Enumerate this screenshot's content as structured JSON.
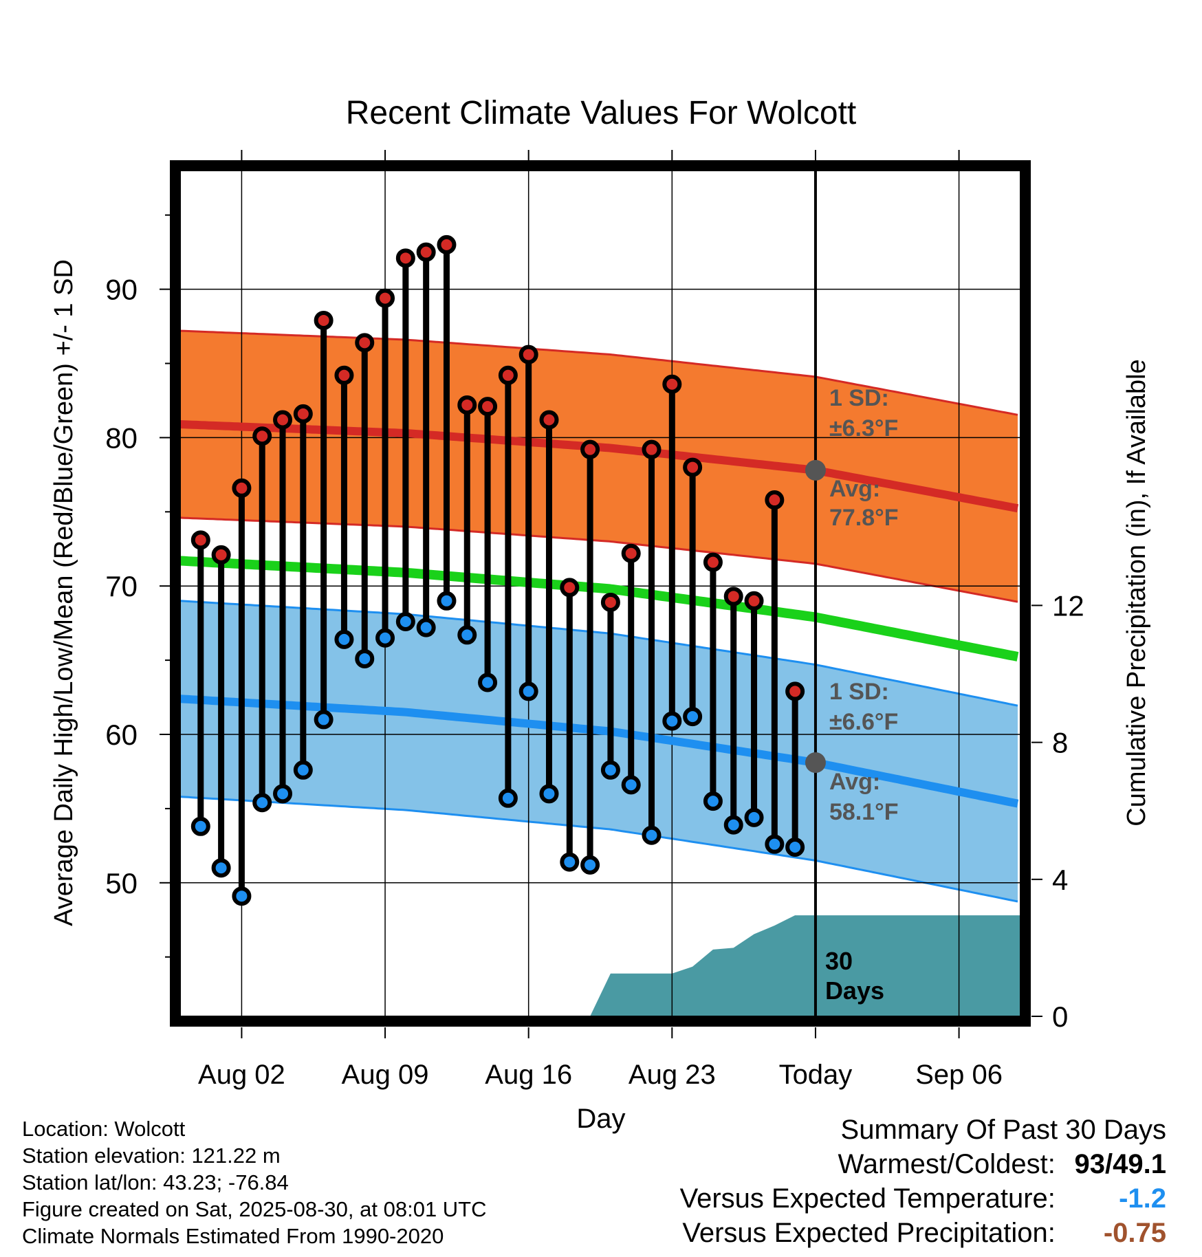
{
  "chart_data": {
    "type": "line",
    "title": "Recent Climate Values For Wolcott",
    "xlabel": "Day",
    "ylabel": "Average Daily High/Low/Mean (Red/Blue/Green) +/- 1 SD",
    "y2label": "Cumulative Precipitation (in), If Available",
    "xticks": [
      "Aug 02",
      "Aug 09",
      "Aug 16",
      "Aug 23",
      "Today",
      "Sep 06"
    ],
    "yticks": [
      "50",
      "60",
      "70",
      "80",
      "90"
    ],
    "y2ticks": [
      "0",
      "4",
      "8",
      "12"
    ],
    "ylim": [
      41,
      98
    ],
    "y2lim": [
      0,
      24.7
    ],
    "xlim": [
      "2025-07-30",
      "2025-09-09"
    ],
    "days": [
      "Jul 31",
      "Aug 01",
      "Aug 02",
      "Aug 03",
      "Aug 04",
      "Aug 05",
      "Aug 06",
      "Aug 07",
      "Aug 08",
      "Aug 09",
      "Aug 10",
      "Aug 11",
      "Aug 12",
      "Aug 13",
      "Aug 14",
      "Aug 15",
      "Aug 16",
      "Aug 17",
      "Aug 18",
      "Aug 19",
      "Aug 20",
      "Aug 21",
      "Aug 22",
      "Aug 23",
      "Aug 24",
      "Aug 25",
      "Aug 26",
      "Aug 27",
      "Aug 28",
      "Aug 29"
    ],
    "highs": [
      73.1,
      72.1,
      76.6,
      80.1,
      81.2,
      81.6,
      87.9,
      84.2,
      86.4,
      89.4,
      92.1,
      92.5,
      93.0,
      82.2,
      82.1,
      84.2,
      85.6,
      81.2,
      69.9,
      79.2,
      68.9,
      72.2,
      79.2,
      83.6,
      78.0,
      71.6,
      69.3,
      69.0,
      75.8,
      62.9
    ],
    "lows": [
      53.8,
      51.0,
      49.1,
      55.4,
      56.0,
      57.6,
      61.0,
      66.4,
      65.1,
      66.5,
      67.6,
      67.2,
      69.0,
      66.7,
      63.5,
      55.7,
      62.9,
      56.0,
      51.4,
      51.2,
      57.6,
      56.6,
      53.2,
      60.9,
      61.2,
      55.5,
      53.9,
      54.4,
      52.6,
      52.4
    ],
    "normal_x": [
      "2025-07-30",
      "2025-08-10",
      "2025-08-20",
      "2025-08-30",
      "2025-09-09"
    ],
    "normal_high": [
      80.9,
      80.3,
      79.3,
      77.8,
      75.2
    ],
    "normal_low": [
      62.4,
      61.5,
      60.2,
      58.1,
      55.3
    ],
    "normal_mean": [
      71.7,
      70.9,
      69.8,
      67.9,
      65.2
    ],
    "high_sd": 6.3,
    "low_sd": 6.6,
    "precip_x": [
      "2025-08-19",
      "2025-08-20",
      "2025-08-21",
      "2025-08-22",
      "2025-08-23",
      "2025-08-24",
      "2025-08-25",
      "2025-08-26",
      "2025-08-27",
      "2025-08-28",
      "2025-08-29",
      "2025-09-09"
    ],
    "precip_cum": [
      0.0,
      1.25,
      1.25,
      1.25,
      1.25,
      1.45,
      1.95,
      2.0,
      2.4,
      2.65,
      2.95,
      2.95
    ],
    "today": "2025-08-30",
    "annotations": {
      "high_sd_label": "1 SD:",
      "high_sd_value": "±6.3°F",
      "high_avg_label": "Avg:",
      "high_avg_value": "77.8°F",
      "low_sd_label": "1 SD:",
      "low_sd_value": "±6.6°F",
      "low_avg_label": "Avg:",
      "low_avg_value": "58.1°F",
      "precip_days_1": "30",
      "precip_days_2": "Days"
    },
    "colors": {
      "high_band": "#f47a2f",
      "high_line": "#d42a25",
      "high_marker": "#d42a25",
      "low_band": "#84c2e8",
      "low_line": "#1e8ff0",
      "low_marker": "#1e8ff0",
      "mean_line": "#1ad11a",
      "precip_fill": "#4a9aa3",
      "annotation_text": "#555555",
      "avg_marker": "#555555"
    }
  },
  "info": {
    "location": "Location: Wolcott",
    "elevation": "Station elevation: 121.22 m",
    "latlon": "Station lat/lon: 43.23; -76.84",
    "created": "Figure created on Sat, 2025-08-30, at 08:01 UTC",
    "normals": "Climate Normals Estimated From 1990-2020"
  },
  "summary": {
    "title": "Summary Of Past 30 Days",
    "warmest_label": "Warmest/Coldest:",
    "warmest_value": "93/49.1",
    "temp_label": "Versus Expected Temperature:",
    "temp_value": "-1.2",
    "precip_label": "Versus Expected Precipitation:",
    "precip_value": "-0.75",
    "temp_color": "#1e8ff0",
    "precip_color": "#a0522d"
  }
}
